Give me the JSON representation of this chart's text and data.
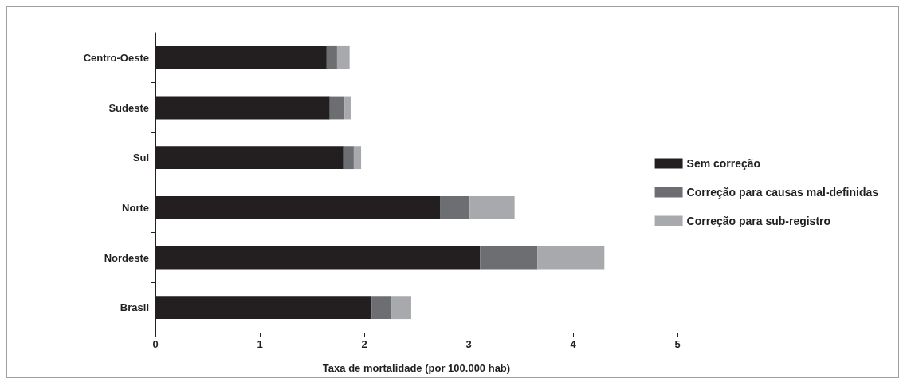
{
  "chart_data": {
    "type": "bar",
    "orientation": "horizontal",
    "stacked": true,
    "xlabel": "Taxa de mortalidade (por 100.000 hab)",
    "categories": [
      "Centro-Oeste",
      "Sudeste",
      "Sul",
      "Norte",
      "Nordeste",
      "Brasil"
    ],
    "series": [
      {
        "name": "Sem correção",
        "color": "#231f20",
        "values": [
          1.64,
          1.67,
          1.8,
          2.73,
          3.11,
          2.07
        ]
      },
      {
        "name": "Correção para causas mal-definidas",
        "color": "#6d6e71",
        "values": [
          0.1,
          0.14,
          0.1,
          0.28,
          0.55,
          0.19
        ]
      },
      {
        "name": "Correção para sub-registro",
        "color": "#a7a9ac",
        "values": [
          0.12,
          0.06,
          0.07,
          0.43,
          0.64,
          0.19
        ]
      }
    ],
    "xlim": [
      0,
      5
    ],
    "xticks": [
      0,
      1,
      2,
      3,
      4,
      5
    ],
    "grid": false,
    "legend": "right"
  }
}
